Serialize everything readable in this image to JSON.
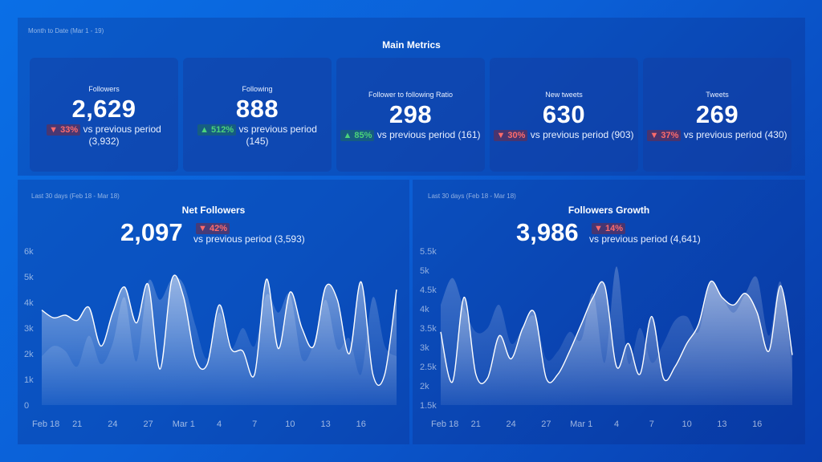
{
  "main": {
    "period": "Month to Date (Mar 1 - 19)",
    "title": "Main Metrics",
    "cards": [
      {
        "label": "Followers",
        "value": "2,629",
        "change": "33%",
        "direction": "down",
        "cmp_text": "vs previous period",
        "prev": "(3,932)"
      },
      {
        "label": "Following",
        "value": "888",
        "change": "512%",
        "direction": "up",
        "cmp_text": "vs previous period",
        "prev": "(145)"
      },
      {
        "label": "Follower to following Ratio",
        "value": "298",
        "change": "85%",
        "direction": "up",
        "cmp_text": "vs previous period (161)"
      },
      {
        "label": "New tweets",
        "value": "630",
        "change": "30%",
        "direction": "down",
        "cmp_text": "vs previous period (903)"
      },
      {
        "label": "Tweets",
        "value": "269",
        "change": "37%",
        "direction": "down",
        "cmp_text": "vs previous period (430)"
      }
    ]
  },
  "colors": {
    "up": "#4bd37a",
    "down": "#ff6b6b",
    "line": "#ffffff"
  },
  "chart_data": [
    {
      "type": "area",
      "period": "Last 30 days (Feb 18 - Mar 18)",
      "title": "Net Followers",
      "value": "2,097",
      "change": "42%",
      "direction": "down",
      "cmp_text": "vs previous period (3,593)",
      "y_ticks": [
        "6k",
        "5k",
        "4k",
        "3k",
        "2k",
        "1k",
        "0"
      ],
      "ylim": [
        0,
        6000
      ],
      "x_ticks": [
        "Feb 18",
        "21",
        "24",
        "27",
        "Mar 1",
        "4",
        "7",
        "10",
        "13",
        "16"
      ],
      "x_tick_index": [
        0,
        3,
        6,
        9,
        12,
        15,
        18,
        21,
        24,
        27
      ],
      "series": [
        {
          "values": [
            3700,
            3400,
            3500,
            3300,
            3800,
            2300,
            3600,
            4600,
            3200,
            4700,
            1400,
            4900,
            4200,
            1800,
            1600,
            3900,
            2200,
            2100,
            1200,
            4900,
            2200,
            4400,
            3000,
            2300,
            4600,
            4100,
            2000,
            4800,
            1200,
            1200,
            4500
          ]
        },
        {
          "values": [
            1900,
            2300,
            2100,
            1500,
            2700,
            1600,
            2400,
            4200,
            1700,
            4800,
            4100,
            4900,
            4700,
            3100,
            1800,
            3600,
            2200,
            3000,
            2300,
            4300,
            3600,
            4300,
            1800,
            2400,
            4100,
            2200,
            2600,
            1200,
            4200,
            2300,
            1900
          ]
        }
      ]
    },
    {
      "type": "area",
      "period": "Last 30 days (Feb 18 - Mar 18)",
      "title": "Followers Growth",
      "value": "3,986",
      "change": "14%",
      "direction": "down",
      "cmp_text": "vs previous period (4,641)",
      "y_ticks": [
        "5.5k",
        "5k",
        "4.5k",
        "4k",
        "3.5k",
        "3k",
        "2.5k",
        "2k",
        "1.5k"
      ],
      "ylim": [
        1500,
        5500
      ],
      "x_ticks": [
        "Feb 18",
        "21",
        "24",
        "27",
        "Mar 1",
        "4",
        "7",
        "10",
        "13",
        "16"
      ],
      "x_tick_index": [
        0,
        3,
        6,
        9,
        12,
        15,
        18,
        21,
        24,
        27
      ],
      "series": [
        {
          "values": [
            3400,
            2100,
            4300,
            2300,
            2200,
            3300,
            2700,
            3500,
            3900,
            2200,
            2300,
            2900,
            3600,
            4300,
            4600,
            2500,
            3100,
            2300,
            3800,
            2200,
            2500,
            3100,
            3600,
            4700,
            4300,
            4100,
            4400,
            3900,
            2900,
            4600,
            2800
          ]
        },
        {
          "values": [
            4100,
            4800,
            4000,
            3400,
            3500,
            4100,
            3100,
            3500,
            3800,
            2700,
            2900,
            3400,
            3200,
            4400,
            2600,
            5100,
            2600,
            3500,
            2600,
            3100,
            3700,
            3800,
            3400,
            4700,
            4300,
            3900,
            4400,
            4800,
            3300,
            4700,
            2400
          ]
        }
      ]
    }
  ]
}
